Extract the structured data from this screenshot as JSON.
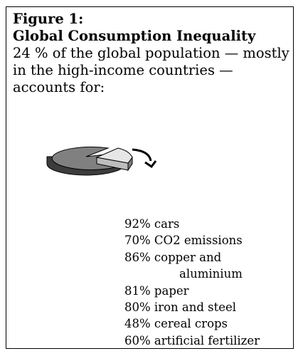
{
  "figure": {
    "label": "Figure 1:",
    "title": "Global Consumption Inequality",
    "subtitle_lines": [
      "24 % of the global population — mostly",
      "in the high-income countries —",
      "accounts for:"
    ]
  },
  "chart_data": {
    "type": "pie",
    "slices": [
      {
        "value": 24,
        "exploded": true,
        "color": "#e6e6e6"
      },
      {
        "value": 76,
        "exploded": false,
        "color": "#808080"
      }
    ]
  },
  "items": [
    {
      "line1": "92% cars"
    },
    {
      "line1": "70% CO2 emissions"
    },
    {
      "line1": "86% copper and",
      "line2": "aluminium"
    },
    {
      "line1": "81% paper"
    },
    {
      "line1": "80% iron and steel"
    },
    {
      "line1": "48% cereal crops"
    },
    {
      "line1": "60% artificial fertilizer"
    }
  ],
  "colors": {
    "border": "#000000",
    "pie_main": "#808080",
    "pie_slice": "#e6e6e6",
    "pie_side": "#3c3c3c"
  }
}
